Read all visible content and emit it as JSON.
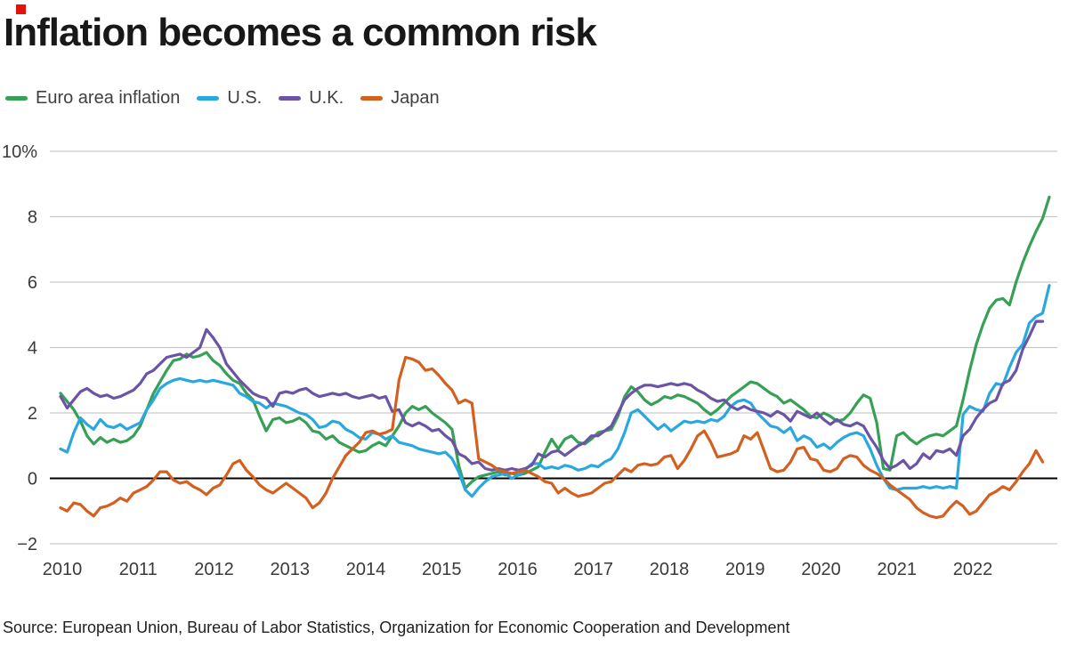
{
  "brand": {
    "logo_square_color": "#e3120b"
  },
  "title": "Inflation becomes a common risk",
  "source": "Source: European Union, Bureau of Labor Statistics, Organization for Economic Cooperation and Development",
  "legend": [
    {
      "label": "Euro area inflation",
      "color": "#36a055"
    },
    {
      "label": "U.S.",
      "color": "#29a8e0"
    },
    {
      "label": "U.K.",
      "color": "#6b54a5"
    },
    {
      "label": "Japan",
      "color": "#d4601f"
    }
  ],
  "chart_data": {
    "type": "line",
    "title": "Inflation becomes a common risk",
    "x_start": "2010-01",
    "x_frequency": "monthly",
    "x_end": "2022-06",
    "ylim": [
      -2,
      10
    ],
    "grid": "horizontal",
    "legend_position": "top-left",
    "y_ticks": [
      {
        "v": 10,
        "label": "10%"
      },
      {
        "v": 8,
        "label": "8"
      },
      {
        "v": 6,
        "label": "6"
      },
      {
        "v": 4,
        "label": "4"
      },
      {
        "v": 2,
        "label": "2"
      },
      {
        "v": 0,
        "label": "0"
      },
      {
        "v": -2,
        "label": "−2"
      }
    ],
    "x_ticks": [
      "2010",
      "2011",
      "2012",
      "2013",
      "2014",
      "2015",
      "2016",
      "2017",
      "2018",
      "2019",
      "2020",
      "2021",
      "2022"
    ],
    "zero_baseline_color": "#000000",
    "gridline_color": "#c9c9c9",
    "series": [
      {
        "name": "Euro area inflation",
        "color": "#36a055",
        "values": [
          2.6,
          2.35,
          2.1,
          1.75,
          1.3,
          1.05,
          1.25,
          1.1,
          1.2,
          1.1,
          1.15,
          1.3,
          1.6,
          2.1,
          2.6,
          2.95,
          3.3,
          3.6,
          3.65,
          3.8,
          3.7,
          3.75,
          3.85,
          3.6,
          3.45,
          3.2,
          3.0,
          2.9,
          2.6,
          2.4,
          1.9,
          1.45,
          1.8,
          1.85,
          1.7,
          1.75,
          1.85,
          1.7,
          1.45,
          1.4,
          1.2,
          1.3,
          1.1,
          1.0,
          0.9,
          0.8,
          0.85,
          1.0,
          1.1,
          1.0,
          1.3,
          1.6,
          2.0,
          2.2,
          2.1,
          2.2,
          2.0,
          1.85,
          1.7,
          1.5,
          0.4,
          -0.3,
          -0.1,
          0.05,
          0.1,
          0.15,
          0.2,
          0.1,
          0.15,
          0.1,
          0.15,
          0.25,
          0.35,
          0.8,
          1.2,
          0.9,
          1.2,
          1.3,
          1.1,
          1.05,
          1.2,
          1.4,
          1.45,
          1.5,
          1.9,
          2.5,
          2.8,
          2.65,
          2.4,
          2.25,
          2.35,
          2.5,
          2.45,
          2.55,
          2.5,
          2.4,
          2.3,
          2.1,
          1.95,
          2.1,
          2.3,
          2.5,
          2.65,
          2.8,
          2.95,
          2.9,
          2.75,
          2.6,
          2.5,
          2.3,
          2.4,
          2.25,
          2.1,
          1.9,
          1.85,
          2.0,
          1.9,
          1.75,
          1.8,
          2.0,
          2.3,
          2.55,
          2.45,
          1.7,
          0.3,
          0.25,
          1.3,
          1.4,
          1.2,
          1.05,
          1.2,
          1.3,
          1.35,
          1.3,
          1.45,
          1.6,
          2.4,
          3.3,
          4.1,
          4.7,
          5.2,
          5.45,
          5.5,
          5.3,
          6.0,
          6.6,
          7.1,
          7.55,
          7.95,
          8.6
        ]
      },
      {
        "name": "U.S.",
        "color": "#29a8e0",
        "values": [
          0.9,
          0.8,
          1.4,
          1.85,
          1.65,
          1.5,
          1.8,
          1.6,
          1.55,
          1.65,
          1.5,
          1.6,
          1.7,
          2.1,
          2.4,
          2.75,
          2.9,
          3.0,
          3.05,
          3.0,
          2.95,
          3.0,
          2.95,
          3.0,
          2.95,
          2.9,
          2.85,
          2.6,
          2.5,
          2.35,
          2.3,
          2.15,
          2.3,
          2.25,
          2.2,
          2.1,
          2.0,
          1.95,
          1.8,
          1.55,
          1.6,
          1.75,
          1.7,
          1.5,
          1.4,
          1.25,
          1.2,
          1.4,
          1.35,
          1.2,
          1.3,
          1.1,
          1.05,
          1.0,
          0.9,
          0.85,
          0.8,
          0.75,
          0.8,
          0.6,
          0.2,
          -0.35,
          -0.55,
          -0.3,
          -0.1,
          0.05,
          0.1,
          0.15,
          0.0,
          0.1,
          0.25,
          0.45,
          0.45,
          0.3,
          0.35,
          0.3,
          0.4,
          0.35,
          0.25,
          0.3,
          0.4,
          0.35,
          0.5,
          0.6,
          0.9,
          1.4,
          2.0,
          2.1,
          1.9,
          1.7,
          1.5,
          1.65,
          1.45,
          1.6,
          1.75,
          1.7,
          1.75,
          1.7,
          1.8,
          1.75,
          1.9,
          2.2,
          2.35,
          2.4,
          2.3,
          2.0,
          1.8,
          1.6,
          1.55,
          1.4,
          1.55,
          1.15,
          1.3,
          1.2,
          0.95,
          1.05,
          0.9,
          1.1,
          1.25,
          1.35,
          1.4,
          1.3,
          0.9,
          0.4,
          0.0,
          -0.3,
          -0.35,
          -0.3,
          -0.3,
          -0.3,
          -0.25,
          -0.3,
          -0.25,
          -0.3,
          -0.25,
          -0.3,
          1.95,
          2.2,
          2.1,
          2.05,
          2.6,
          2.9,
          2.85,
          3.4,
          3.85,
          4.1,
          4.75,
          4.95,
          5.05,
          5.9
        ]
      },
      {
        "name": "U.K.",
        "color": "#6b54a5",
        "values": [
          2.5,
          2.15,
          2.4,
          2.65,
          2.75,
          2.6,
          2.5,
          2.55,
          2.45,
          2.5,
          2.6,
          2.7,
          2.9,
          3.2,
          3.3,
          3.5,
          3.7,
          3.75,
          3.8,
          3.7,
          3.85,
          4.0,
          4.55,
          4.3,
          4.0,
          3.5,
          3.25,
          3.0,
          2.8,
          2.6,
          2.5,
          2.45,
          2.2,
          2.6,
          2.65,
          2.6,
          2.7,
          2.75,
          2.6,
          2.5,
          2.55,
          2.6,
          2.55,
          2.6,
          2.5,
          2.45,
          2.5,
          2.55,
          2.45,
          2.5,
          2.05,
          2.1,
          1.7,
          1.6,
          1.7,
          1.6,
          1.45,
          1.5,
          1.3,
          1.15,
          0.75,
          0.65,
          0.45,
          0.5,
          0.3,
          0.25,
          0.3,
          0.25,
          0.3,
          0.25,
          0.3,
          0.4,
          0.75,
          0.65,
          0.8,
          0.85,
          0.7,
          0.85,
          1.0,
          1.1,
          1.3,
          1.3,
          1.45,
          1.6,
          2.0,
          2.4,
          2.6,
          2.75,
          2.85,
          2.85,
          2.8,
          2.85,
          2.9,
          2.85,
          2.9,
          2.85,
          2.7,
          2.6,
          2.45,
          2.35,
          2.4,
          2.2,
          2.1,
          2.2,
          2.1,
          2.05,
          2.0,
          1.9,
          2.05,
          1.95,
          1.75,
          2.05,
          1.95,
          1.85,
          2.0,
          1.8,
          1.65,
          1.8,
          1.65,
          1.6,
          1.7,
          1.6,
          1.25,
          0.95,
          0.55,
          0.3,
          0.4,
          0.55,
          0.3,
          0.45,
          0.75,
          0.6,
          0.85,
          0.8,
          0.9,
          0.7,
          1.3,
          1.5,
          1.85,
          2.1,
          2.3,
          2.4,
          2.9,
          3.0,
          3.3,
          3.95,
          4.35,
          4.8,
          4.8,
          null
        ]
      },
      {
        "name": "Japan",
        "color": "#d4601f",
        "values": [
          -0.9,
          -1.0,
          -0.75,
          -0.8,
          -1.0,
          -1.15,
          -0.9,
          -0.85,
          -0.75,
          -0.6,
          -0.7,
          -0.45,
          -0.35,
          -0.25,
          -0.05,
          0.2,
          0.2,
          -0.05,
          -0.15,
          -0.1,
          -0.25,
          -0.35,
          -0.5,
          -0.3,
          -0.2,
          0.1,
          0.45,
          0.55,
          0.25,
          0.05,
          -0.2,
          -0.35,
          -0.45,
          -0.3,
          -0.15,
          -0.3,
          -0.45,
          -0.6,
          -0.9,
          -0.75,
          -0.45,
          0.0,
          0.35,
          0.7,
          0.9,
          1.1,
          1.4,
          1.45,
          1.35,
          1.4,
          1.5,
          3.0,
          3.7,
          3.65,
          3.55,
          3.3,
          3.35,
          3.15,
          2.9,
          2.7,
          2.3,
          2.4,
          2.3,
          0.6,
          0.5,
          0.4,
          0.25,
          0.2,
          0.15,
          0.2,
          0.25,
          0.15,
          0.05,
          -0.1,
          -0.15,
          -0.45,
          -0.3,
          -0.45,
          -0.55,
          -0.5,
          -0.45,
          -0.3,
          -0.15,
          -0.1,
          0.1,
          0.3,
          0.2,
          0.4,
          0.45,
          0.4,
          0.45,
          0.65,
          0.7,
          0.3,
          0.55,
          0.9,
          1.3,
          1.45,
          1.1,
          0.65,
          0.7,
          0.75,
          0.85,
          1.3,
          1.2,
          1.4,
          0.85,
          0.3,
          0.2,
          0.25,
          0.5,
          0.9,
          0.95,
          0.6,
          0.55,
          0.25,
          0.2,
          0.3,
          0.6,
          0.7,
          0.65,
          0.4,
          0.25,
          0.15,
          0.0,
          -0.2,
          -0.35,
          -0.5,
          -0.65,
          -0.9,
          -1.05,
          -1.15,
          -1.2,
          -1.15,
          -0.9,
          -0.7,
          -0.85,
          -1.1,
          -1.0,
          -0.75,
          -0.5,
          -0.4,
          -0.25,
          -0.35,
          -0.1,
          0.2,
          0.45,
          0.85,
          0.5,
          null
        ]
      }
    ]
  }
}
